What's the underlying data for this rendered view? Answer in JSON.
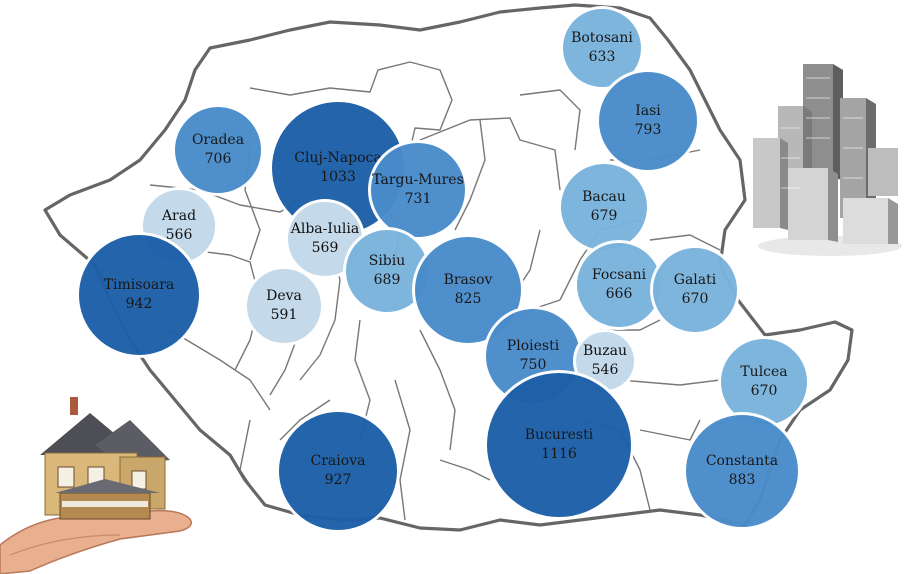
{
  "legend_colors": {
    "light": "#c4d9ea",
    "mid_light": "#79b3dc",
    "mid": "#4a8ccb",
    "dark": "#1d5fa8"
  },
  "decorations": {
    "left": "house-on-hand-icon",
    "right": "skyscrapers-icon"
  },
  "cities": [
    {
      "id": "botosani",
      "name": "Botosani",
      "value": "633",
      "shade": "mid_light"
    },
    {
      "id": "iasi",
      "name": "Iasi",
      "value": "793",
      "shade": "mid"
    },
    {
      "id": "oradea",
      "name": "Oradea",
      "value": "706",
      "shade": "mid"
    },
    {
      "id": "cluj-napoca",
      "name": "Cluj-Napoca",
      "value": "1033",
      "shade": "dark"
    },
    {
      "id": "targu-mures",
      "name": "Targu-Mures",
      "value": "731",
      "shade": "mid"
    },
    {
      "id": "bacau",
      "name": "Bacau",
      "value": "679",
      "shade": "mid_light"
    },
    {
      "id": "arad",
      "name": "Arad",
      "value": "566",
      "shade": "light"
    },
    {
      "id": "alba-iulia",
      "name": "Alba-Iulia",
      "value": "569",
      "shade": "light"
    },
    {
      "id": "timisoara",
      "name": "Timisoara",
      "value": "942",
      "shade": "dark"
    },
    {
      "id": "sibiu",
      "name": "Sibiu",
      "value": "689",
      "shade": "mid_light"
    },
    {
      "id": "brasov",
      "name": "Brasov",
      "value": "825",
      "shade": "mid"
    },
    {
      "id": "focsani",
      "name": "Focsani",
      "value": "666",
      "shade": "mid_light"
    },
    {
      "id": "galati",
      "name": "Galati",
      "value": "670",
      "shade": "mid_light"
    },
    {
      "id": "deva",
      "name": "Deva",
      "value": "591",
      "shade": "light"
    },
    {
      "id": "ploiesti",
      "name": "Ploiesti",
      "value": "750",
      "shade": "mid"
    },
    {
      "id": "buzau",
      "name": "Buzau",
      "value": "546",
      "shade": "light"
    },
    {
      "id": "tulcea",
      "name": "Tulcea",
      "value": "670",
      "shade": "mid_light"
    },
    {
      "id": "bucuresti",
      "name": "Bucuresti",
      "value": "1116",
      "shade": "dark"
    },
    {
      "id": "craiova",
      "name": "Craiova",
      "value": "927",
      "shade": "dark"
    },
    {
      "id": "constanta",
      "name": "Constanta",
      "value": "883",
      "shade": "mid"
    }
  ]
}
